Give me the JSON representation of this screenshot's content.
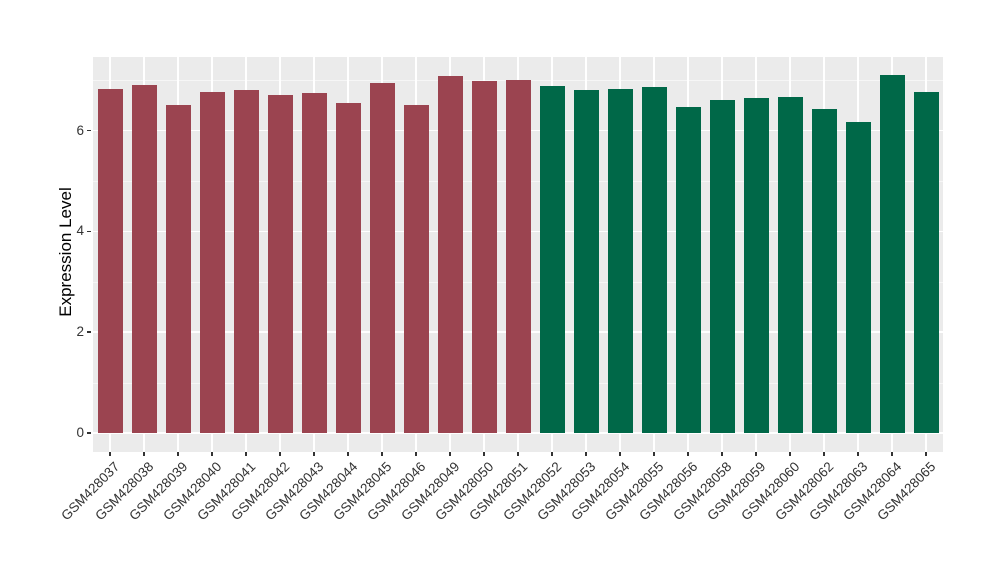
{
  "chart_data": {
    "type": "bar",
    "title": "",
    "xlabel": "",
    "ylabel": "Expression Level",
    "legend_position": "none",
    "grid": true,
    "panel_background": "#EBEBEB",
    "gridline_color": "#FFFFFF",
    "tick_label_color": "#333333",
    "ylim": [
      0,
      7.46
    ],
    "yticks": [
      0,
      2,
      4,
      6
    ],
    "yticks_minor": [
      1,
      3,
      5,
      7
    ],
    "categories": [
      "GSM428037",
      "GSM428038",
      "GSM428039",
      "GSM428040",
      "GSM428041",
      "GSM428042",
      "GSM428043",
      "GSM428044",
      "GSM428045",
      "GSM428046",
      "GSM428049",
      "GSM428050",
      "GSM428051",
      "GSM428052",
      "GSM428053",
      "GSM428054",
      "GSM428055",
      "GSM428056",
      "GSM428058",
      "GSM428059",
      "GSM428060",
      "GSM428062",
      "GSM428063",
      "GSM428064",
      "GSM428065"
    ],
    "values": [
      6.83,
      6.91,
      6.51,
      6.76,
      6.8,
      6.71,
      6.75,
      6.55,
      6.95,
      6.51,
      7.09,
      6.98,
      7.0,
      6.89,
      6.81,
      6.82,
      6.86,
      6.46,
      6.61,
      6.65,
      6.67,
      6.43,
      6.18,
      7.11,
      6.76
    ],
    "bar_groups": [
      "group1",
      "group1",
      "group1",
      "group1",
      "group1",
      "group1",
      "group1",
      "group1",
      "group1",
      "group1",
      "group1",
      "group1",
      "group1",
      "group2",
      "group2",
      "group2",
      "group2",
      "group2",
      "group2",
      "group2",
      "group2",
      "group2",
      "group2",
      "group2",
      "group2"
    ],
    "group_colors": {
      "group1": "#9B4450",
      "group2": "#006848"
    }
  }
}
